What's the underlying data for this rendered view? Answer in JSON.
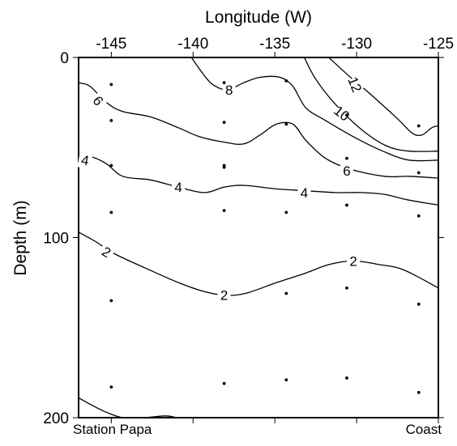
{
  "chart_data": {
    "type": "contour",
    "title": "",
    "xlabel": "Longitude (W)",
    "ylabel": "Depth (m)",
    "xlim": [
      -147,
      -125
    ],
    "ylim": [
      0,
      200
    ],
    "y_inverted": true,
    "x_ticks": [
      {
        "value": -145,
        "label": "-145"
      },
      {
        "value": -140,
        "label": "-140"
      },
      {
        "value": -135,
        "label": "-135"
      },
      {
        "value": -130,
        "label": "-130"
      },
      {
        "value": -125,
        "label": "-125"
      }
    ],
    "y_ticks": [
      {
        "value": 0,
        "label": "0"
      },
      {
        "value": 100,
        "label": "100"
      },
      {
        "value": 200,
        "label": "200"
      }
    ],
    "corner_labels": {
      "left": "Station Papa",
      "right": "Coast"
    },
    "contours": [
      {
        "level": 12,
        "label": "12",
        "points": [
          [
            -131.7,
            0
          ],
          [
            -130.5,
            10
          ],
          [
            -129.2,
            20
          ],
          [
            -127.5,
            34
          ],
          [
            -126.6,
            42
          ],
          [
            -126,
            43
          ],
          [
            -125.4,
            39
          ],
          [
            -125,
            38
          ]
        ],
        "label_at": [
          -130.1,
          15,
          68
        ]
      },
      {
        "level": 10,
        "label": "10",
        "points": [
          [
            -133.2,
            0
          ],
          [
            -132.5,
            12
          ],
          [
            -131.3,
            26
          ],
          [
            -129.7,
            40
          ],
          [
            -128.2,
            49
          ],
          [
            -126.8,
            52
          ],
          [
            -125,
            52
          ]
        ],
        "label_at": [
          -130.9,
          31,
          38
        ]
      },
      {
        "level": 8,
        "label": "8",
        "points": [
          [
            -140.1,
            0
          ],
          [
            -139.4,
            9
          ],
          [
            -138.8,
            15
          ],
          [
            -137.9,
            18
          ],
          [
            -136.9,
            14
          ],
          [
            -135.9,
            11
          ],
          [
            -134.7,
            11
          ],
          [
            -133.9,
            16
          ],
          [
            -133.1,
            28
          ],
          [
            -131.9,
            35
          ],
          [
            -130.2,
            44
          ],
          [
            -128.4,
            52
          ],
          [
            -126.8,
            57
          ],
          [
            -125,
            57
          ]
        ],
        "label_at": [
          -137.8,
          18,
          0
        ]
      },
      {
        "level": 6,
        "label": "6",
        "points": [
          [
            -147,
            14
          ],
          [
            -146.3,
            16
          ],
          [
            -145.3,
            25
          ],
          [
            -144.3,
            30
          ],
          [
            -142.6,
            33
          ],
          [
            -140.9,
            39
          ],
          [
            -139.6,
            44
          ],
          [
            -138.1,
            47
          ],
          [
            -136.9,
            48
          ],
          [
            -135.9,
            43
          ],
          [
            -134.9,
            37
          ],
          [
            -133.9,
            37
          ],
          [
            -133.1,
            46
          ],
          [
            -131.9,
            56
          ],
          [
            -130.4,
            62
          ],
          [
            -128.3,
            66
          ],
          [
            -126.8,
            66
          ],
          [
            -125,
            67
          ]
        ],
        "label_at": [
          -145.8,
          24,
          52
        ]
      },
      {
        "level": 4,
        "label": "4",
        "points": [
          [
            -147,
            56
          ],
          [
            -146.3,
            55
          ],
          [
            -145.3,
            59
          ],
          [
            -144.3,
            66
          ],
          [
            -142.6,
            68
          ],
          [
            -140.9,
            72
          ],
          [
            -139.3,
            75
          ],
          [
            -138.1,
            72
          ],
          [
            -136.9,
            71
          ],
          [
            -134.9,
            73
          ],
          [
            -133.1,
            74
          ],
          [
            -131.3,
            75
          ],
          [
            -129.8,
            75
          ],
          [
            -128.3,
            76
          ],
          [
            -126.9,
            79
          ],
          [
            -125,
            82
          ]
        ],
        "label_at": [
          -146.6,
          57,
          10
        ]
      },
      {
        "level": 2,
        "label": "2",
        "points": [
          [
            -147,
            97
          ],
          [
            -146,
            102
          ],
          [
            -144.8,
            109
          ],
          [
            -142.9,
            117
          ],
          [
            -140.9,
            125
          ],
          [
            -139.3,
            130
          ],
          [
            -138.1,
            132
          ],
          [
            -136.8,
            131
          ],
          [
            -134.9,
            125
          ],
          [
            -133.2,
            120
          ],
          [
            -131.7,
            115
          ],
          [
            -130.2,
            113
          ],
          [
            -128.6,
            115
          ],
          [
            -127.1,
            118
          ],
          [
            -125,
            128
          ]
        ],
        "label_at": [
          -145.3,
          108,
          30
        ]
      },
      {
        "level": 0,
        "label": "",
        "points": [
          [
            -147,
            189
          ],
          [
            -146.2,
            193
          ],
          [
            -145.3,
            197
          ],
          [
            -144.3,
            200
          ],
          [
            -143,
            200
          ],
          [
            -141.7,
            199
          ],
          [
            -141,
            200
          ]
        ],
        "label_at": null
      }
    ],
    "extra_labels": [
      {
        "label": "2",
        "x": -138.1,
        "y": 132
      },
      {
        "label": "6",
        "x": -130.6,
        "y": 63
      },
      {
        "label": "4",
        "x": -133.2,
        "y": 75
      },
      {
        "label": "4",
        "x": -140.9,
        "y": 72
      },
      {
        "label": "2",
        "x": -130.2,
        "y": 113
      }
    ],
    "stations": [
      {
        "x": -145,
        "y": 15
      },
      {
        "x": -145,
        "y": 35
      },
      {
        "x": -145,
        "y": 60
      },
      {
        "x": -145,
        "y": 86
      },
      {
        "x": -145,
        "y": 135
      },
      {
        "x": -145,
        "y": 183
      },
      {
        "x": -138.1,
        "y": 14
      },
      {
        "x": -138.1,
        "y": 36
      },
      {
        "x": -138.1,
        "y": 60
      },
      {
        "x": -138.1,
        "y": 61
      },
      {
        "x": -138.1,
        "y": 85
      },
      {
        "x": -138.1,
        "y": 181
      },
      {
        "x": -134.3,
        "y": 13
      },
      {
        "x": -134.3,
        "y": 37
      },
      {
        "x": -134.3,
        "y": 86
      },
      {
        "x": -134.3,
        "y": 131
      },
      {
        "x": -134.3,
        "y": 179
      },
      {
        "x": -130.6,
        "y": 32
      },
      {
        "x": -130.6,
        "y": 56
      },
      {
        "x": -130.6,
        "y": 82
      },
      {
        "x": -130.6,
        "y": 128
      },
      {
        "x": -130.6,
        "y": 178
      },
      {
        "x": -126.2,
        "y": 38
      },
      {
        "x": -126.2,
        "y": 64
      },
      {
        "x": -126.2,
        "y": 88
      },
      {
        "x": -126.2,
        "y": 137
      },
      {
        "x": -126.2,
        "y": 186
      }
    ]
  }
}
